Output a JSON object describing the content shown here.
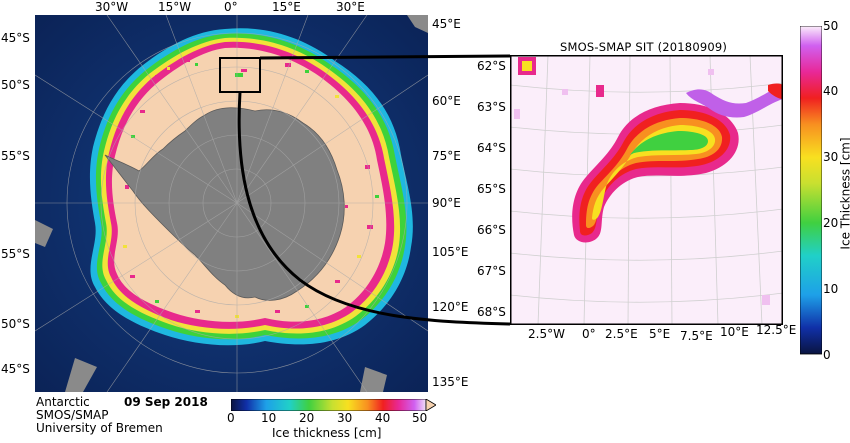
{
  "main_map": {
    "top_labels": [
      "30°W",
      "15°W",
      "0°",
      "15°E",
      "30°E"
    ],
    "left_labels": [
      "45°S",
      "50°S",
      "55°S",
      "55°S",
      "50°S",
      "45°S"
    ],
    "right_labels": [
      "45°E",
      "60°E",
      "75°E",
      "90°E",
      "105°E",
      "120°E",
      "135°E"
    ]
  },
  "footer": {
    "line1": "Antarctic",
    "date": "09 Sep 2018",
    "line2": "SMOS/SMAP",
    "line3": "University of Bremen"
  },
  "bottom_colorbar": {
    "ticks": [
      "0",
      "10",
      "20",
      "30",
      "40",
      "50"
    ],
    "label": "Ice thickness [cm]"
  },
  "inset": {
    "title": "SMOS-SMAP SIT (20180909)",
    "lat_labels": [
      "62°S",
      "63°S",
      "64°S",
      "65°S",
      "66°S",
      "67°S",
      "68°S"
    ],
    "lon_labels": [
      "2.5°W",
      "0°",
      "2.5°E",
      "5°E",
      "7.5°E",
      "10°E",
      "12.5°E"
    ]
  },
  "right_colorbar": {
    "ticks": [
      "50",
      "40",
      "30",
      "20",
      "10",
      "0"
    ],
    "label": "Ice Thickness [cm]"
  },
  "colors": {
    "ocean": "#0d2d6b",
    "land": "#808080",
    "thick_ice": "#f6d2b0",
    "inset_background": "#fbeefa"
  }
}
